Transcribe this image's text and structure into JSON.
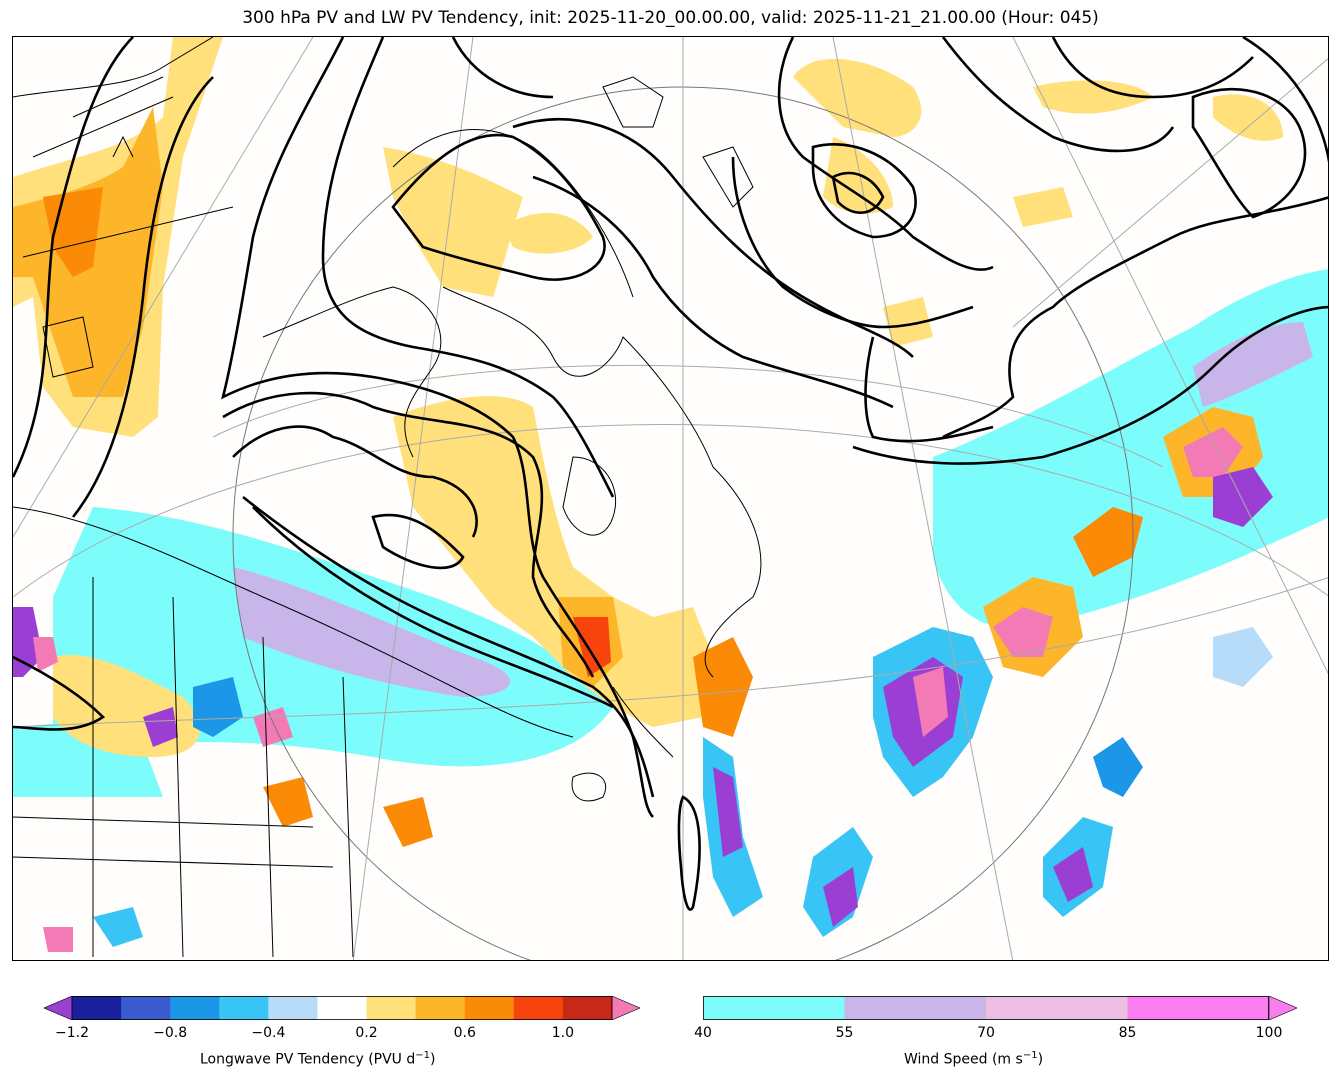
{
  "title": "300 hPa PV and LW PV Tendency, init: 2025-11-20_00.00.00, valid: 2025-11-21_21.00.00 (Hour: 045)",
  "pv_colorbar": {
    "label_main": "Longwave PV Tendency (PVU d",
    "label_sup": "−1",
    "label_end": ")",
    "ticks": [
      "−1.2",
      "−0.8",
      "−0.4",
      "0.2",
      "0.6",
      "1.0"
    ],
    "under_color": "#9b3fd4",
    "over_color": "#f37ab5",
    "colors": [
      "#1a1f9c",
      "#3a5bd0",
      "#1c96e6",
      "#38c4f5",
      "#b7dcf9",
      "#ffffff",
      "#ffe07a",
      "#fdb52a",
      "#fb8a06",
      "#f6440c",
      "#c82818"
    ]
  },
  "wind_colorbar": {
    "label_main": "Wind Speed (m s",
    "label_sup": "−1",
    "label_end": ")",
    "ticks": [
      "40",
      "55",
      "70",
      "85",
      "100"
    ],
    "colors": [
      "#7dfcfc",
      "#c8b6ea",
      "#eebde3",
      "#fb7ef0"
    ]
  }
}
